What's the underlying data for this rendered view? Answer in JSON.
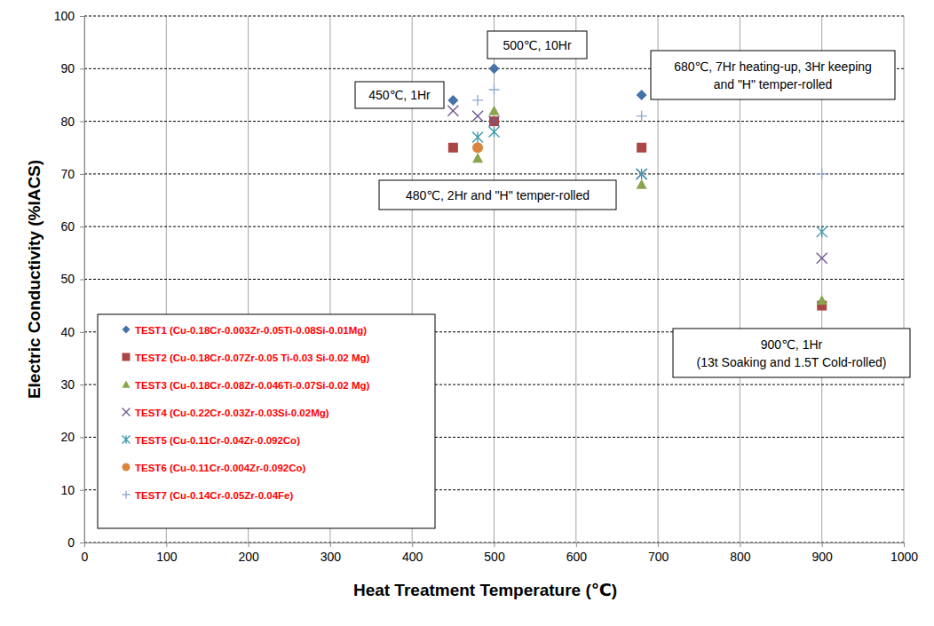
{
  "chart_data": {
    "type": "scatter",
    "x_label": "Heat Treatment Temperature (℃)",
    "y_label": "Electric Conductivity (%IACS)",
    "xlim": [
      0,
      1000
    ],
    "xticks": [
      0,
      100,
      200,
      300,
      400,
      500,
      600,
      700,
      800,
      900,
      1000
    ],
    "ylim": [
      0,
      100
    ],
    "yticks": [
      0,
      10,
      20,
      30,
      40,
      50,
      60,
      70,
      80,
      90,
      100
    ],
    "grid": true,
    "legend": "lower left",
    "series": [
      {
        "name": "TEST1 (Cu-0.18Cr-0.003Zr-0.05Ti-0.08Si-0.01Mg)",
        "color": "#4572a7",
        "marker": "diamond",
        "x": [
          450,
          500,
          680
        ],
        "values": [
          84,
          90,
          85
        ]
      },
      {
        "name": "TEST2 (Cu-0.18Cr-0.07Zr-0.05 Ti-0.03 Si-0.02 Mg)",
        "color": "#aa4643",
        "marker": "square",
        "x": [
          450,
          500,
          680,
          900
        ],
        "values": [
          75,
          80,
          75,
          45
        ]
      },
      {
        "name": "TEST3 (Cu-0.18Cr-0.08Zr-0.046Ti-0.07Si-0.02 Mg)",
        "color": "#89a54e",
        "marker": "triangle",
        "x": [
          480,
          500,
          680,
          900
        ],
        "values": [
          73,
          82,
          68,
          46
        ]
      },
      {
        "name": "TEST4 (Cu-0.22Cr-0.03Zr-0.03Si-0.02Mg)",
        "color": "#71588f",
        "marker": "x",
        "x": [
          450,
          480,
          500,
          680,
          900
        ],
        "values": [
          82,
          81,
          80,
          70,
          54
        ]
      },
      {
        "name": "TEST5 (Cu-0.11Cr-0.04Zr-0.092Co)",
        "color": "#4198af",
        "marker": "asterisk",
        "x": [
          480,
          500,
          680,
          900
        ],
        "values": [
          77,
          78,
          70,
          59
        ]
      },
      {
        "name": "TEST6 (Cu-0.11Cr-0.004Zr-0.092Co)",
        "color": "#db843d",
        "marker": "circle",
        "x": [
          480
        ],
        "values": [
          75
        ]
      },
      {
        "name": "TEST7 (Cu-0.14Cr-0.05Zr-0.04Fe)",
        "color": "#93a9cf",
        "marker": "plus",
        "x": [
          480,
          500,
          680,
          900
        ],
        "values": [
          84,
          86,
          81,
          70
        ]
      }
    ],
    "annotations": [
      [
        "450℃, 1Hr"
      ],
      [
        "500℃, 10Hr"
      ],
      [
        "680℃, 7Hr heating-up, 3Hr keeping",
        "and \"H\" temper-rolled"
      ],
      [
        "480℃, 2Hr and \"H\" temper-rolled"
      ],
      [
        "900℃, 1Hr",
        "(13t Soaking and 1.5T Cold-rolled)"
      ]
    ]
  }
}
